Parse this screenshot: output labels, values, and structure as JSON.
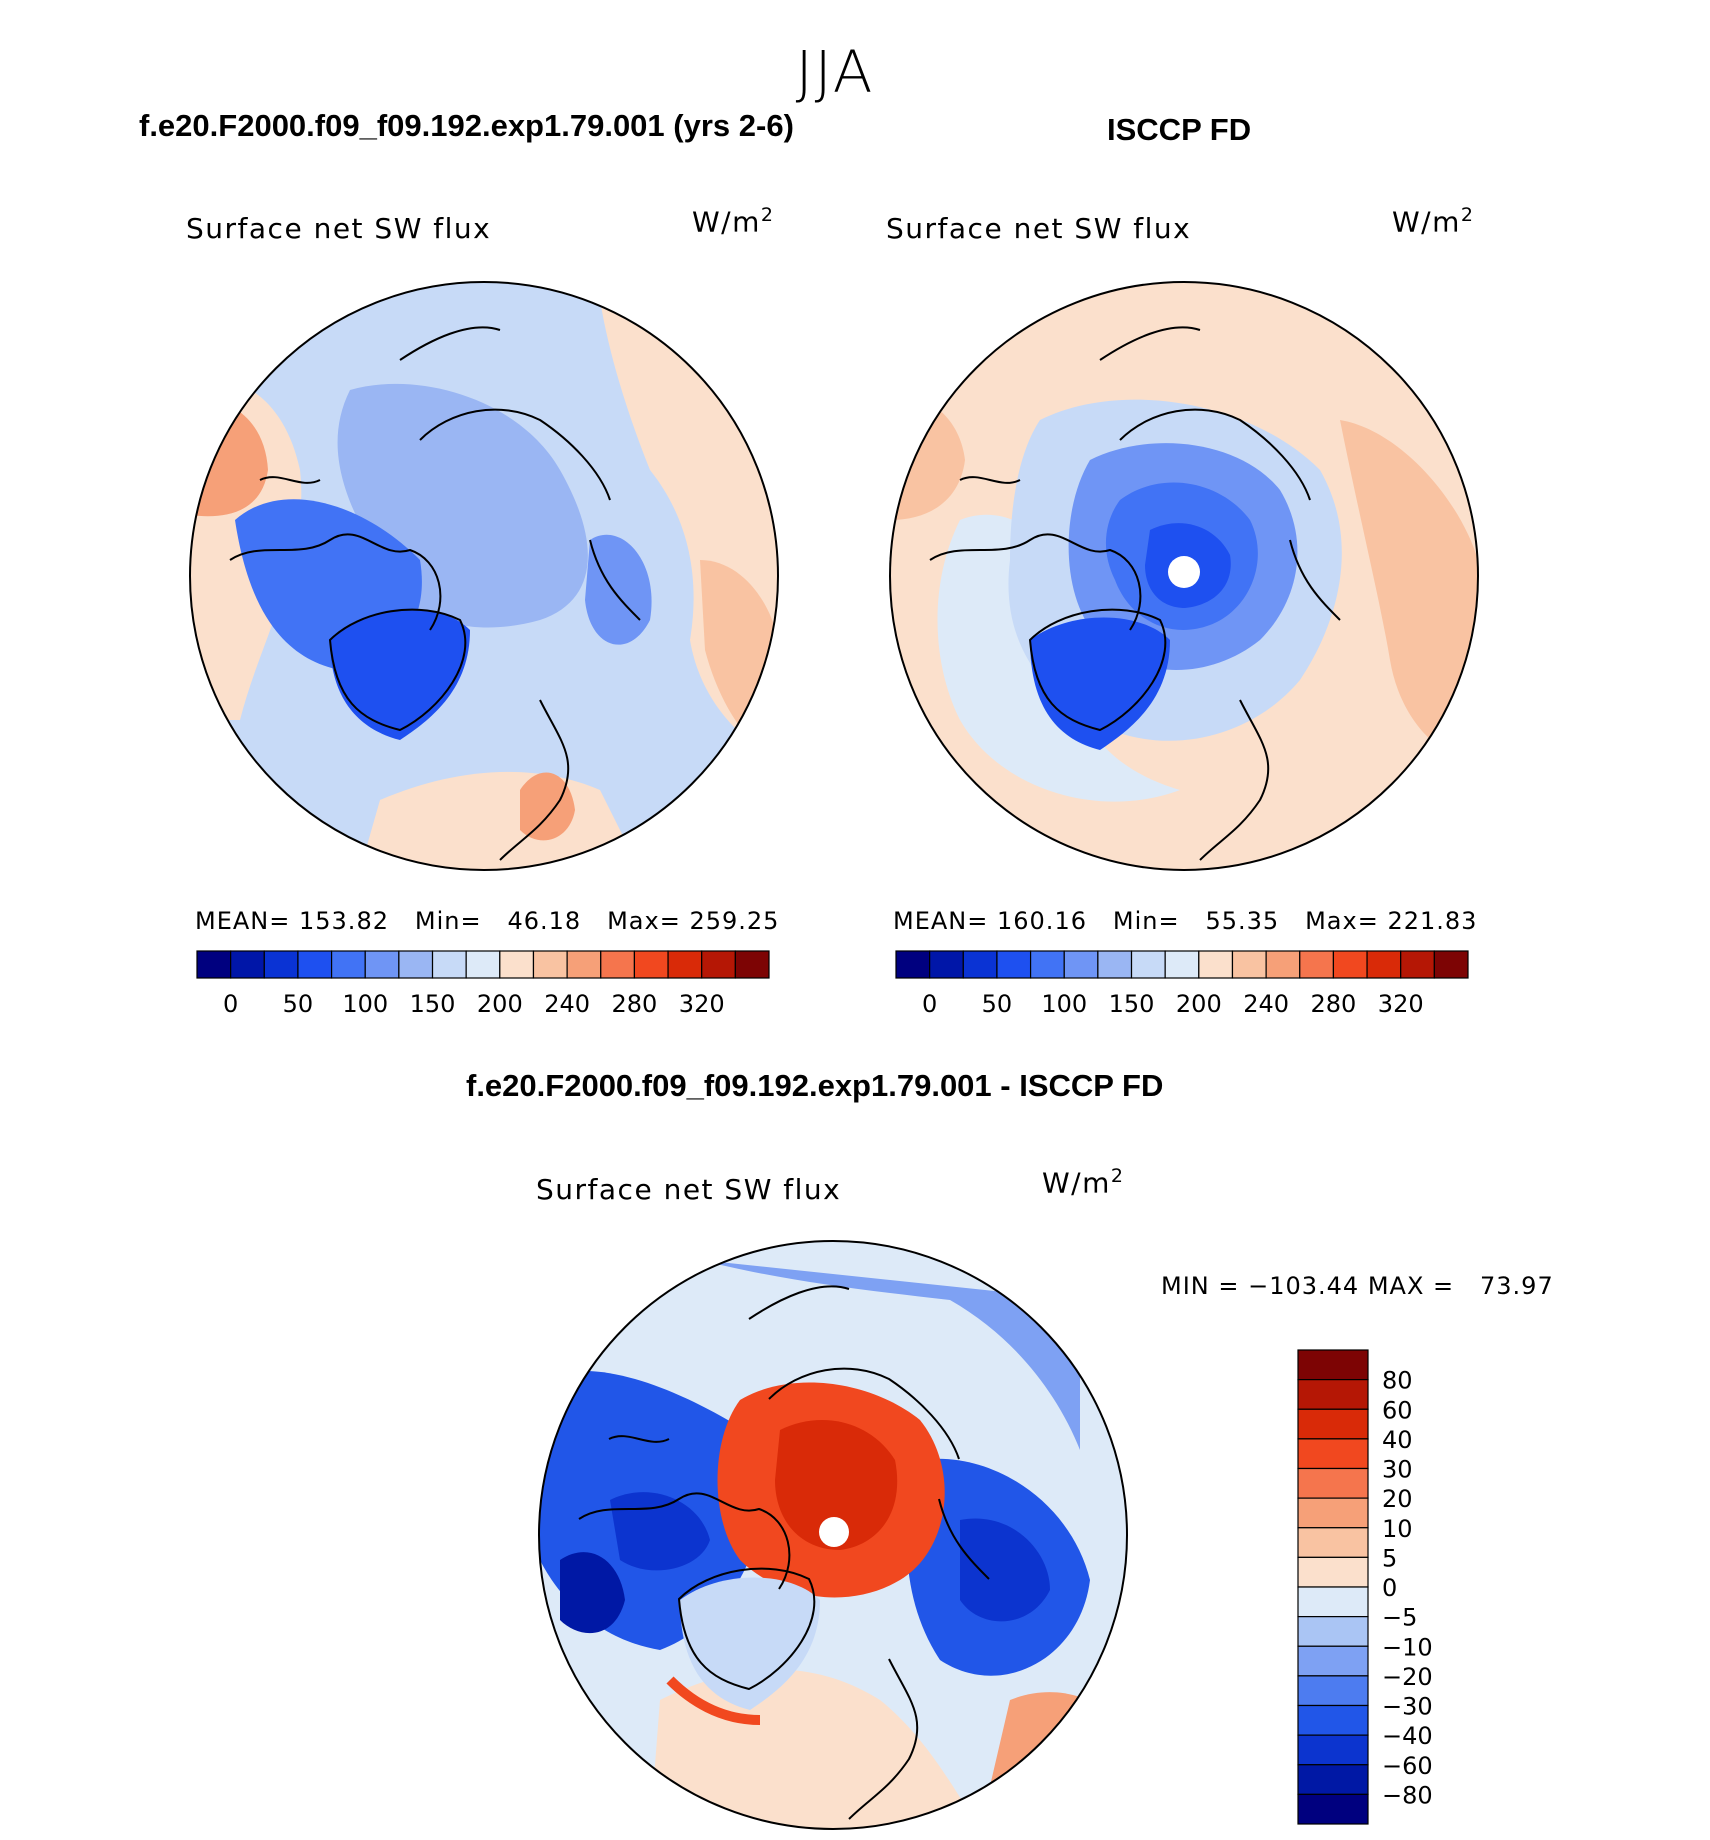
{
  "season": "JJA",
  "panels": [
    {
      "title": "f.e20.F2000.f09_f09.192.exp1.79.001 (yrs 2-6)",
      "variable": "Surface net SW flux",
      "units_base": "W/m",
      "units_exp": "2",
      "stats": {
        "mean_label": "MEAN=",
        "mean": "153.82",
        "min_label": "Min=",
        "min": "46.18",
        "max_label": "Max=",
        "max": "259.25"
      }
    },
    {
      "title": "ISCCP FD",
      "variable": "Surface net SW flux",
      "units_base": "W/m",
      "units_exp": "2",
      "stats": {
        "mean_label": "MEAN=",
        "mean": "160.16",
        "min_label": "Min=",
        "min": "55.35",
        "max_label": "Max=",
        "max": "221.83"
      }
    },
    {
      "title": "f.e20.F2000.f09_f09.192.exp1.79.001 - ISCCP FD",
      "variable": "Surface net SW flux",
      "units_base": "W/m",
      "units_exp": "2",
      "stats": {
        "minmax": "MIN = −103.44 MAX =   73.97"
      }
    }
  ],
  "chart_data": [
    {
      "type": "heatmap",
      "projection": "north polar stereographic",
      "title": "f.e20.F2000.f09_f09.192.exp1.79.001 (yrs 2-6)",
      "variable": "Surface net SW flux",
      "units": "W/m2",
      "mean": 153.82,
      "min": 46.18,
      "max": 259.25,
      "colorbar": {
        "orientation": "horizontal",
        "ticks": [
          "0",
          "50",
          "100",
          "150",
          "200",
          "240",
          "280",
          "320"
        ],
        "colors": [
          "#00007f",
          "#0016a8",
          "#0a33d4",
          "#1e50f0",
          "#4173f5",
          "#6f95f5",
          "#9ab6f3",
          "#c7daf7",
          "#ddeaf8",
          "#fbe0cc",
          "#f9c3a2",
          "#f6a078",
          "#f5754d",
          "#f1481f",
          "#d92a08",
          "#b51705",
          "#7d0404"
        ]
      }
    },
    {
      "type": "heatmap",
      "projection": "north polar stereographic",
      "title": "ISCCP FD",
      "variable": "Surface net SW flux",
      "units": "W/m2",
      "mean": 160.16,
      "min": 55.35,
      "max": 221.83,
      "colorbar": {
        "orientation": "horizontal",
        "ticks": [
          "0",
          "50",
          "100",
          "150",
          "200",
          "240",
          "280",
          "320"
        ],
        "colors": [
          "#00007f",
          "#0016a8",
          "#0a33d4",
          "#1e50f0",
          "#4173f5",
          "#6f95f5",
          "#9ab6f3",
          "#c7daf7",
          "#ddeaf8",
          "#fbe0cc",
          "#f9c3a2",
          "#f6a078",
          "#f5754d",
          "#f1481f",
          "#d92a08",
          "#b51705",
          "#7d0404"
        ]
      }
    },
    {
      "type": "heatmap",
      "projection": "north polar stereographic",
      "title": "f.e20.F2000.f09_f09.192.exp1.79.001 - ISCCP FD",
      "variable": "Surface net SW flux",
      "units": "W/m2",
      "min": -103.44,
      "max": 73.97,
      "colorbar": {
        "orientation": "vertical",
        "ticks": [
          "80",
          "60",
          "40",
          "30",
          "20",
          "10",
          "5",
          "0",
          "−5",
          "−10",
          "−20",
          "−30",
          "−40",
          "−60",
          "−80"
        ],
        "colors": [
          "#7d0404",
          "#b51705",
          "#d92a08",
          "#f1481f",
          "#f5754d",
          "#f6a078",
          "#f9c3a2",
          "#fbe0cc",
          "#ddeaf8",
          "#aac5f4",
          "#7ea1f3",
          "#4d7cf0",
          "#2156e8",
          "#0c34cf",
          "#0018a5",
          "#00007f"
        ]
      }
    }
  ]
}
